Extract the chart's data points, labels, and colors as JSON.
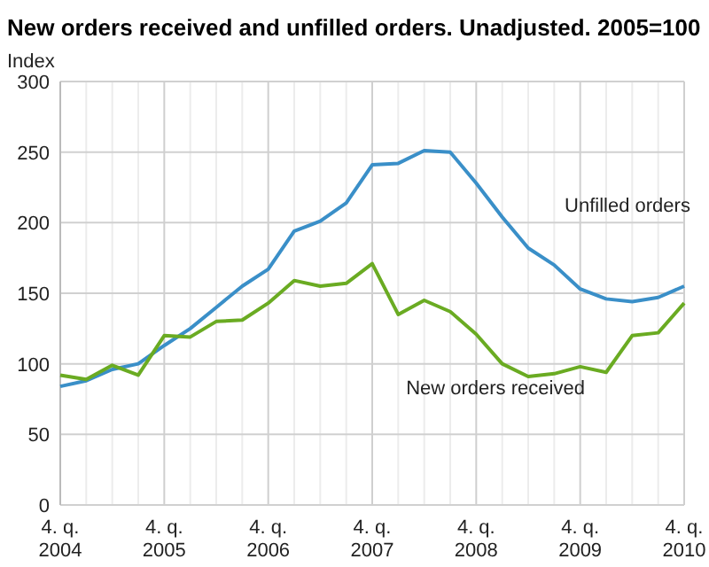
{
  "chart_data": {
    "type": "line",
    "title": "New orders received and unfilled orders. Unadjusted. 2005=100",
    "ylabel": "Index",
    "categories": [
      "4. q. 2004",
      null,
      null,
      null,
      "4. q. 2005",
      null,
      null,
      null,
      "4. q. 2006",
      null,
      null,
      null,
      "4. q. 2007",
      null,
      null,
      null,
      "4. q. 2008",
      null,
      null,
      null,
      "4. q. 2009",
      null,
      null,
      null,
      "4. q. 2010"
    ],
    "series": [
      {
        "name": "Unfilled orders",
        "color": "#3a8fc8",
        "values": [
          84,
          88,
          96,
          100,
          113,
          125,
          140,
          155,
          167,
          194,
          201,
          214,
          241,
          242,
          251,
          250,
          228,
          204,
          182,
          170,
          153,
          146,
          144,
          147,
          155
        ]
      },
      {
        "name": "New orders received",
        "color": "#6aab22",
        "values": [
          92,
          89,
          99,
          92,
          120,
          119,
          130,
          131,
          143,
          159,
          155,
          157,
          171,
          135,
          145,
          137,
          121,
          100,
          91,
          93,
          98,
          94,
          120,
          122,
          143
        ]
      }
    ],
    "ylim": [
      0,
      300
    ],
    "yticks": [
      0,
      50,
      100,
      150,
      200,
      250,
      300
    ],
    "grid": true,
    "legend": false,
    "line_style": "solid",
    "marker": "none"
  }
}
